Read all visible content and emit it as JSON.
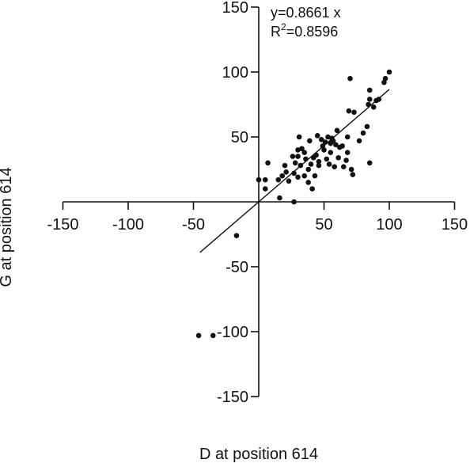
{
  "chart_data": {
    "type": "scatter",
    "xlabel": "D at position 614",
    "ylabel": "G at position 614",
    "xlim": [
      -150,
      150
    ],
    "ylim": [
      -150,
      150
    ],
    "xticks": [
      -150,
      -100,
      -50,
      50,
      100,
      150
    ],
    "yticks": [
      150,
      100,
      50,
      -50,
      -100,
      -150
    ],
    "grid": false,
    "axes_cross_at_origin": true,
    "annotation": {
      "equation_prefix": "y=0.8661 x",
      "r2_base": "R",
      "r2_exp": "2",
      "r2_value": "=0.8596"
    },
    "regression": {
      "slope": 0.8661,
      "x_range": [
        -45,
        100
      ]
    },
    "series": [
      {
        "marker_color": "#111111",
        "points": [
          [
            -46,
            -103
          ],
          [
            -35,
            -103
          ],
          [
            -17,
            -26
          ],
          [
            0,
            17
          ],
          [
            5,
            17
          ],
          [
            5,
            10
          ],
          [
            7,
            30
          ],
          [
            15,
            17
          ],
          [
            16,
            3
          ],
          [
            18,
            20
          ],
          [
            20,
            28
          ],
          [
            21,
            23
          ],
          [
            23,
            16
          ],
          [
            26,
            35
          ],
          [
            27,
            22
          ],
          [
            28,
            30
          ],
          [
            30,
            35
          ],
          [
            30,
            19
          ],
          [
            30,
            40
          ],
          [
            31,
            50
          ],
          [
            32,
            28
          ],
          [
            33,
            41
          ],
          [
            35,
            38
          ],
          [
            35,
            20
          ],
          [
            36,
            33
          ],
          [
            38,
            15
          ],
          [
            38,
            25
          ],
          [
            39,
            47
          ],
          [
            40,
            29
          ],
          [
            41,
            10
          ],
          [
            42,
            34
          ],
          [
            43,
            20
          ],
          [
            44,
            36
          ],
          [
            45,
            51
          ],
          [
            46,
            31
          ],
          [
            46,
            28
          ],
          [
            48,
            48
          ],
          [
            49,
            43
          ],
          [
            50,
            40
          ],
          [
            51,
            46
          ],
          [
            52,
            33
          ],
          [
            53,
            50
          ],
          [
            54,
            29
          ],
          [
            55,
            38
          ],
          [
            55,
            45
          ],
          [
            56,
            49
          ],
          [
            57,
            47
          ],
          [
            58,
            27
          ],
          [
            59,
            44
          ],
          [
            60,
            55
          ],
          [
            61,
            34
          ],
          [
            62,
            42
          ],
          [
            64,
            43
          ],
          [
            65,
            27
          ],
          [
            67,
            32
          ],
          [
            68,
            38
          ],
          [
            68,
            50
          ],
          [
            69,
            70
          ],
          [
            70,
            95
          ],
          [
            71,
            25
          ],
          [
            72,
            21
          ],
          [
            73,
            69
          ],
          [
            77,
            47
          ],
          [
            80,
            53
          ],
          [
            83,
            58
          ],
          [
            84,
            75
          ],
          [
            85,
            30
          ],
          [
            85,
            79
          ],
          [
            85,
            86
          ],
          [
            88,
            73
          ],
          [
            90,
            78
          ],
          [
            92,
            79
          ],
          [
            96,
            92
          ],
          [
            97,
            95
          ],
          [
            100,
            100
          ],
          [
            27,
            0
          ]
        ]
      }
    ]
  }
}
